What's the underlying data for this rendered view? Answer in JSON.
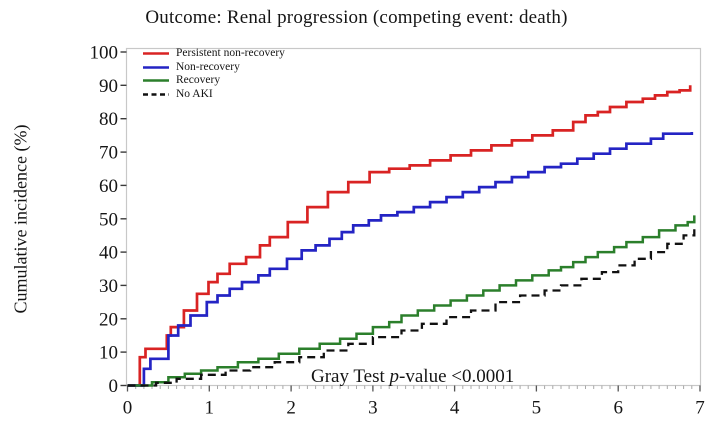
{
  "figure": {
    "title": "Outcome: Renal progression (competing event: death)",
    "y_axis_label": "Cumulative incidence (%)",
    "annotation": {
      "prefix": "Gray Test ",
      "italic": "p",
      "suffix": "-value <0.0001"
    }
  },
  "chart_data": {
    "type": "line",
    "subtype": "cumulative-incidence-step",
    "title": "Outcome: Renal progression (competing event: death)",
    "xlabel": "",
    "ylabel": "Cumulative incidence (%)",
    "xlim": [
      0,
      7
    ],
    "ylim": [
      0,
      100
    ],
    "x_ticks": [
      0,
      1,
      2,
      3,
      4,
      5,
      6,
      7
    ],
    "y_ticks": [
      0,
      10,
      20,
      30,
      40,
      50,
      60,
      70,
      80,
      90,
      100
    ],
    "x_minor_tick_interval": 0.1,
    "grid": false,
    "legend_position": "top-left",
    "frame_color": "#c8c8c8",
    "tick_color": "#555555",
    "minor_tick_color": "#a8a8a8",
    "annotation_text": "Gray Test p-value <0.0001",
    "series": [
      {
        "name": "Persistent non-recovery",
        "color": "#d92323",
        "dash": "solid",
        "width": 2.7,
        "points": [
          [
            0,
            0
          ],
          [
            0.15,
            8.5
          ],
          [
            0.22,
            11
          ],
          [
            0.48,
            15
          ],
          [
            0.53,
            17.5
          ],
          [
            0.69,
            22.5
          ],
          [
            0.85,
            27.5
          ],
          [
            0.99,
            31
          ],
          [
            1.1,
            33.5
          ],
          [
            1.25,
            36.5
          ],
          [
            1.45,
            38.5
          ],
          [
            1.62,
            42
          ],
          [
            1.74,
            44.5
          ],
          [
            1.96,
            49
          ],
          [
            2.2,
            53.5
          ],
          [
            2.45,
            58
          ],
          [
            2.7,
            61
          ],
          [
            2.96,
            64
          ],
          [
            3.2,
            65
          ],
          [
            3.45,
            66
          ],
          [
            3.7,
            67.5
          ],
          [
            3.95,
            69
          ],
          [
            4.2,
            70.5
          ],
          [
            4.45,
            72
          ],
          [
            4.7,
            73.5
          ],
          [
            4.95,
            75
          ],
          [
            5.2,
            76.5
          ],
          [
            5.45,
            79
          ],
          [
            5.6,
            81
          ],
          [
            5.75,
            82
          ],
          [
            5.9,
            83.5
          ],
          [
            6.1,
            85
          ],
          [
            6.3,
            86
          ],
          [
            6.45,
            87
          ],
          [
            6.6,
            88
          ],
          [
            6.75,
            88.5
          ],
          [
            6.88,
            90
          ]
        ]
      },
      {
        "name": "Non-recovery",
        "color": "#2424c4",
        "dash": "solid",
        "width": 2.7,
        "points": [
          [
            0,
            0
          ],
          [
            0.2,
            5
          ],
          [
            0.28,
            8
          ],
          [
            0.5,
            15
          ],
          [
            0.62,
            18
          ],
          [
            0.77,
            21
          ],
          [
            0.97,
            25
          ],
          [
            1.1,
            27
          ],
          [
            1.25,
            29
          ],
          [
            1.4,
            31
          ],
          [
            1.6,
            33
          ],
          [
            1.74,
            35
          ],
          [
            1.95,
            38
          ],
          [
            2.13,
            40.5
          ],
          [
            2.3,
            42
          ],
          [
            2.47,
            44
          ],
          [
            2.62,
            46
          ],
          [
            2.76,
            48
          ],
          [
            2.95,
            49.5
          ],
          [
            3.1,
            51
          ],
          [
            3.3,
            52
          ],
          [
            3.5,
            53.5
          ],
          [
            3.7,
            55
          ],
          [
            3.9,
            56.5
          ],
          [
            4.1,
            58
          ],
          [
            4.3,
            59.5
          ],
          [
            4.5,
            61
          ],
          [
            4.7,
            62.5
          ],
          [
            4.9,
            64
          ],
          [
            5.1,
            65.5
          ],
          [
            5.3,
            66.5
          ],
          [
            5.5,
            68
          ],
          [
            5.7,
            69.5
          ],
          [
            5.9,
            71
          ],
          [
            6.1,
            72.5
          ],
          [
            6.4,
            74
          ],
          [
            6.55,
            75.5
          ],
          [
            6.9,
            76
          ]
        ]
      },
      {
        "name": "Recovery",
        "color": "#2b7f2b",
        "dash": "solid",
        "width": 2.5,
        "points": [
          [
            0,
            0
          ],
          [
            0.3,
            1
          ],
          [
            0.5,
            2.5
          ],
          [
            0.7,
            3.5
          ],
          [
            0.9,
            4.5
          ],
          [
            1.1,
            5.5
          ],
          [
            1.35,
            7
          ],
          [
            1.6,
            8
          ],
          [
            1.85,
            9.5
          ],
          [
            2.1,
            11
          ],
          [
            2.35,
            12.5
          ],
          [
            2.6,
            14
          ],
          [
            2.8,
            15.5
          ],
          [
            3.0,
            17.5
          ],
          [
            3.2,
            19
          ],
          [
            3.35,
            21
          ],
          [
            3.55,
            22.5
          ],
          [
            3.75,
            24
          ],
          [
            3.95,
            25.5
          ],
          [
            4.15,
            27
          ],
          [
            4.35,
            28.5
          ],
          [
            4.55,
            30
          ],
          [
            4.75,
            31.5
          ],
          [
            4.95,
            33
          ],
          [
            5.15,
            34.5
          ],
          [
            5.3,
            35.5
          ],
          [
            5.45,
            37
          ],
          [
            5.6,
            38.5
          ],
          [
            5.75,
            40
          ],
          [
            5.95,
            41.5
          ],
          [
            6.1,
            43
          ],
          [
            6.3,
            44.5
          ],
          [
            6.5,
            46.5
          ],
          [
            6.7,
            48
          ],
          [
            6.85,
            49
          ],
          [
            6.93,
            51
          ]
        ]
      },
      {
        "name": "No AKI",
        "color": "#111111",
        "dash": "dashed",
        "width": 2.3,
        "points": [
          [
            0,
            0
          ],
          [
            0.35,
            0.8
          ],
          [
            0.6,
            2
          ],
          [
            0.9,
            3.2
          ],
          [
            1.2,
            4.5
          ],
          [
            1.5,
            5.5
          ],
          [
            1.8,
            7
          ],
          [
            2.1,
            8.5
          ],
          [
            2.4,
            10.5
          ],
          [
            2.7,
            12.5
          ],
          [
            3.0,
            14.5
          ],
          [
            3.35,
            16.5
          ],
          [
            3.6,
            18.5
          ],
          [
            3.9,
            20.5
          ],
          [
            4.2,
            22.5
          ],
          [
            4.5,
            25
          ],
          [
            4.8,
            27
          ],
          [
            5.1,
            28.5
          ],
          [
            5.3,
            30
          ],
          [
            5.55,
            32
          ],
          [
            5.8,
            34
          ],
          [
            6.0,
            36
          ],
          [
            6.2,
            38
          ],
          [
            6.4,
            40
          ],
          [
            6.6,
            42.5
          ],
          [
            6.8,
            45
          ],
          [
            6.93,
            47
          ]
        ]
      }
    ]
  }
}
